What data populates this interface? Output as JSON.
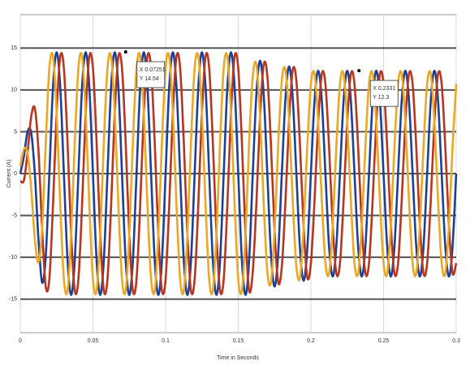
{
  "chart_data": {
    "type": "line",
    "xlabel": "Time in Seconds",
    "ylabel": "Current (A)",
    "xlim": [
      0,
      0.3
    ],
    "xticks": [
      0,
      0.05,
      0.1,
      0.15,
      0.2,
      0.25,
      0.3
    ],
    "ylim": [
      -19,
      19
    ],
    "yticks": [
      -15,
      -10,
      -5,
      0,
      5,
      10,
      15
    ],
    "grid": true,
    "x": [
      0,
      0.0025,
      0.005,
      0.0075,
      0.01,
      0.0125,
      0.015,
      0.0175,
      0.02,
      0.0225,
      0.025,
      0.0275,
      0.03,
      0.0325,
      0.035,
      0.0375,
      0.04,
      0.0425,
      0.045,
      0.0475,
      0.05,
      0.0525,
      0.055,
      0.0575,
      0.06,
      0.0625,
      0.065,
      0.0675,
      0.07,
      0.0725,
      0.075,
      0.0775,
      0.08,
      0.0825,
      0.085,
      0.0875,
      0.09,
      0.0925,
      0.095,
      0.0975,
      0.1,
      0.1025,
      0.105,
      0.1075,
      0.11,
      0.1125,
      0.115,
      0.1175,
      0.12,
      0.1225,
      0.125,
      0.1275,
      0.13,
      0.1325,
      0.135,
      0.1375,
      0.14,
      0.1425,
      0.145,
      0.1475,
      0.15,
      0.1525,
      0.155,
      0.1575,
      0.16,
      0.1625,
      0.165,
      0.1675,
      0.17,
      0.1725,
      0.175,
      0.1775,
      0.18,
      0.1825,
      0.185,
      0.1875,
      0.19,
      0.1925,
      0.195,
      0.1975,
      0.2,
      0.2025,
      0.205,
      0.2075,
      0.21,
      0.2125,
      0.215,
      0.2175,
      0.22,
      0.2225,
      0.225,
      0.2275,
      0.23,
      0.2325,
      0.235,
      0.2375,
      0.24,
      0.2425,
      0.245,
      0.2475,
      0.25,
      0.2525,
      0.255,
      0.2575,
      0.26,
      0.2625,
      0.265,
      0.2675,
      0.27,
      0.2725,
      0.275,
      0.2775,
      0.28,
      0.2825,
      0.285,
      0.2875,
      0.29,
      0.2925,
      0.295,
      0.2975,
      0.3
    ],
    "series": [
      {
        "color": "#1d3f95",
        "values": [
          0,
          2.1,
          5,
          4.9,
          0,
          -7.8,
          -13,
          -9.9,
          0,
          10.3,
          14.5,
          10.3,
          0,
          -10.3,
          -14.5,
          -10.3,
          0,
          10.3,
          14.5,
          10.3,
          0,
          -10.3,
          -14.5,
          -10.3,
          0,
          10.3,
          14.5,
          10.3,
          0,
          -10.3,
          -14.5,
          -10.3,
          0,
          10.3,
          14.5,
          10.3,
          0,
          -10.3,
          -14.5,
          -10.3,
          0,
          10.3,
          14.5,
          10.3,
          0,
          -10.3,
          -14.5,
          -10.3,
          0,
          10.3,
          14.5,
          10.3,
          0,
          -10.3,
          -14.5,
          -10.3,
          0,
          10.3,
          14.5,
          10.3,
          0,
          -10.3,
          -14.5,
          -10.3,
          0,
          9.5,
          13.5,
          9.5,
          0,
          -9.5,
          -13.5,
          -9.5,
          0,
          9,
          12.8,
          9,
          0,
          -9,
          -12.8,
          -9,
          0,
          8.7,
          12.3,
          8.7,
          0,
          -8.7,
          -12.3,
          -8.7,
          0,
          8.7,
          12.3,
          8.7,
          0,
          -8.7,
          -12.3,
          -8.7,
          0,
          8.7,
          12.3,
          8.7,
          0,
          -8.7,
          -12.3,
          -8.7,
          0,
          8.7,
          12.3,
          8.7,
          0,
          -8.7,
          -12.3,
          -8.7,
          0,
          8.7,
          12.3,
          8.7,
          0,
          -8.7,
          -12.3,
          -8.7,
          0
        ]
      },
      {
        "color": "#b8361f",
        "values": [
          -0.9,
          -0.8,
          2.5,
          6.8,
          7.8,
          2.8,
          -6.5,
          -13.5,
          -12.6,
          -3.8,
          7.3,
          14,
          12.6,
          3.8,
          -7.3,
          -14,
          -12.6,
          -3.8,
          7.3,
          14,
          12.6,
          3.8,
          -7.3,
          -14,
          -12.6,
          -3.8,
          7.3,
          14,
          12.6,
          3.8,
          -7.3,
          -14,
          -12.6,
          -3.8,
          7.3,
          14,
          12.6,
          3.8,
          -7.3,
          -14,
          -12.6,
          -3.8,
          7.3,
          14,
          12.6,
          3.8,
          -7.3,
          -14,
          -12.6,
          -3.8,
          7.3,
          14,
          12.6,
          3.8,
          -7.3,
          -14,
          -12.6,
          -3.8,
          7.3,
          14,
          12.6,
          3.8,
          -7.3,
          -14,
          -11.7,
          -3.5,
          6.8,
          13,
          11.7,
          3.5,
          -6.8,
          -13,
          -11.1,
          -3.3,
          6.4,
          12.4,
          11.1,
          3.3,
          -6.4,
          -12.4,
          -10.7,
          -3.2,
          6.2,
          11.9,
          10.7,
          3.2,
          -6.2,
          -11.9,
          -10.7,
          -3.2,
          6.2,
          11.9,
          10.7,
          3.2,
          -6.2,
          -11.9,
          -10.7,
          -3.2,
          6.2,
          11.9,
          10.7,
          3.2,
          -6.2,
          -11.9,
          -10.7,
          -3.2,
          6.2,
          11.9,
          10.7,
          3.2,
          -6.2,
          -11.9,
          -10.7,
          -3.2,
          6.2,
          11.9,
          10.7,
          3.2,
          -6.2,
          -11.9,
          -10.7
        ]
      },
      {
        "color": "#eaa826",
        "values": [
          0.9,
          2.9,
          2.5,
          -1.8,
          -7.8,
          -10.6,
          -6.5,
          3.6,
          12.6,
          14,
          7.3,
          -3.8,
          -12.6,
          -14,
          -7.3,
          3.8,
          12.6,
          14,
          7.3,
          -3.8,
          -12.6,
          -14,
          -7.3,
          3.8,
          12.6,
          14,
          7.3,
          -3.8,
          -12.6,
          -14,
          -7.3,
          3.8,
          12.6,
          14,
          7.3,
          -3.8,
          -12.6,
          -14,
          -7.3,
          3.8,
          12.6,
          14,
          7.3,
          -3.8,
          -12.6,
          -14,
          -7.3,
          3.8,
          12.6,
          14,
          7.3,
          -3.8,
          -12.6,
          -14,
          -7.3,
          3.8,
          12.6,
          14,
          7.3,
          -3.8,
          -12.6,
          -14,
          -7.3,
          3.8,
          11.7,
          13,
          6.8,
          -3.5,
          -11.7,
          -13,
          -6.8,
          3.5,
          11.1,
          12.4,
          6.4,
          -3.3,
          -11.1,
          -12.4,
          -6.4,
          3.3,
          10.7,
          11.9,
          6.2,
          -3.2,
          -10.7,
          -11.9,
          -6.2,
          3.2,
          10.7,
          11.9,
          6.2,
          -3.2,
          -10.7,
          -11.9,
          -6.2,
          3.2,
          10.7,
          11.9,
          6.2,
          -3.2,
          -10.7,
          -11.9,
          -6.2,
          3.2,
          10.7,
          11.9,
          6.2,
          -3.2,
          -10.7,
          -11.9,
          -6.2,
          3.2,
          10.7,
          11.9,
          6.2,
          -3.2,
          -10.7,
          -11.9,
          -6.2,
          3.2,
          10.7
        ]
      }
    ],
    "annotations": [
      {
        "x": 0.07251,
        "y": 14.54,
        "lines": [
          "X 0.07251",
          "Y 14.54"
        ]
      },
      {
        "x": 0.2331,
        "y": 12.3,
        "lines": [
          "X 0.2331",
          "Y 12.3"
        ]
      }
    ]
  }
}
